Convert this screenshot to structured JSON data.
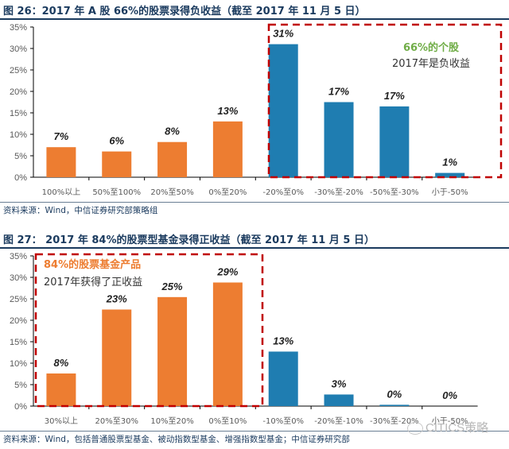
{
  "colors": {
    "positive": "#ED7D31",
    "negative": "#1F7DB1",
    "highlight": "#C00000",
    "anno_green": "#70AD47",
    "anno_orange": "#ED7D31",
    "anno_dark": "#333333",
    "axis": "#000000"
  },
  "chart_data": [
    {
      "type": "bar",
      "title": "图 26：2017 年 A 股 66%的股票录得负收益（截至 2017 年 11 月 5 日）",
      "categories": [
        "100%以上",
        "50%至100%",
        "20%至50%",
        "0%至20%",
        "-20%至0%",
        "-30%至-20%",
        "-50%至-30%",
        "小于-50%"
      ],
      "values": [
        7,
        6,
        8,
        13,
        31,
        17,
        17,
        1
      ],
      "value_labels": [
        "7%",
        "6%",
        "8%",
        "13%",
        "31%",
        "17%",
        "17%",
        "1%"
      ],
      "bar_values_exact": [
        7,
        6,
        8.2,
        13,
        31,
        17.5,
        16.5,
        1
      ],
      "bar_groups": [
        "positive",
        "positive",
        "positive",
        "positive",
        "negative",
        "negative",
        "negative",
        "negative"
      ],
      "ylim": [
        0,
        35
      ],
      "yticks": [
        "0%",
        "5%",
        "10%",
        "15%",
        "20%",
        "25%",
        "30%",
        "35%"
      ],
      "xlabel": "",
      "ylabel": "",
      "grid": false,
      "annotation": {
        "line1": "66%的个股",
        "line2": "2017年是负收益"
      },
      "source": "资料来源：Wind，中信证券研究部策略组"
    },
    {
      "type": "bar",
      "title": "图 27： 2017 年 84%的股票型基金录得正收益（截至 2017 年 11 月 5 日）",
      "categories": [
        "30%以上",
        "20%至30%",
        "10%至20%",
        "0%至10%",
        "-10%至0%",
        "-20%至-10%",
        "-30%至-20%",
        "小于-50%"
      ],
      "values": [
        8,
        23,
        25,
        29,
        13,
        3,
        0,
        0
      ],
      "value_labels": [
        "8%",
        "23%",
        "25%",
        "29%",
        "13%",
        "3%",
        "0%",
        "0%"
      ],
      "bar_values_exact": [
        7.6,
        22.5,
        25.4,
        28.8,
        12.7,
        2.7,
        0.3,
        0
      ],
      "bar_groups": [
        "positive",
        "positive",
        "positive",
        "positive",
        "negative",
        "negative",
        "negative",
        "negative"
      ],
      "ylim": [
        0,
        35
      ],
      "yticks": [
        "0%",
        "5%",
        "10%",
        "15%",
        "20%",
        "25%",
        "30%",
        "35%"
      ],
      "xlabel": "",
      "ylabel": "",
      "grid": false,
      "annotation": {
        "line1": "84%的股票基金产品",
        "line2": "2017年获得了正收益"
      },
      "source": "资料来源：Wind，包括普通股票型基金、被动指数型基金、增强指数型基金；中信证券研究部"
    }
  ],
  "watermark": "CITICS策略"
}
